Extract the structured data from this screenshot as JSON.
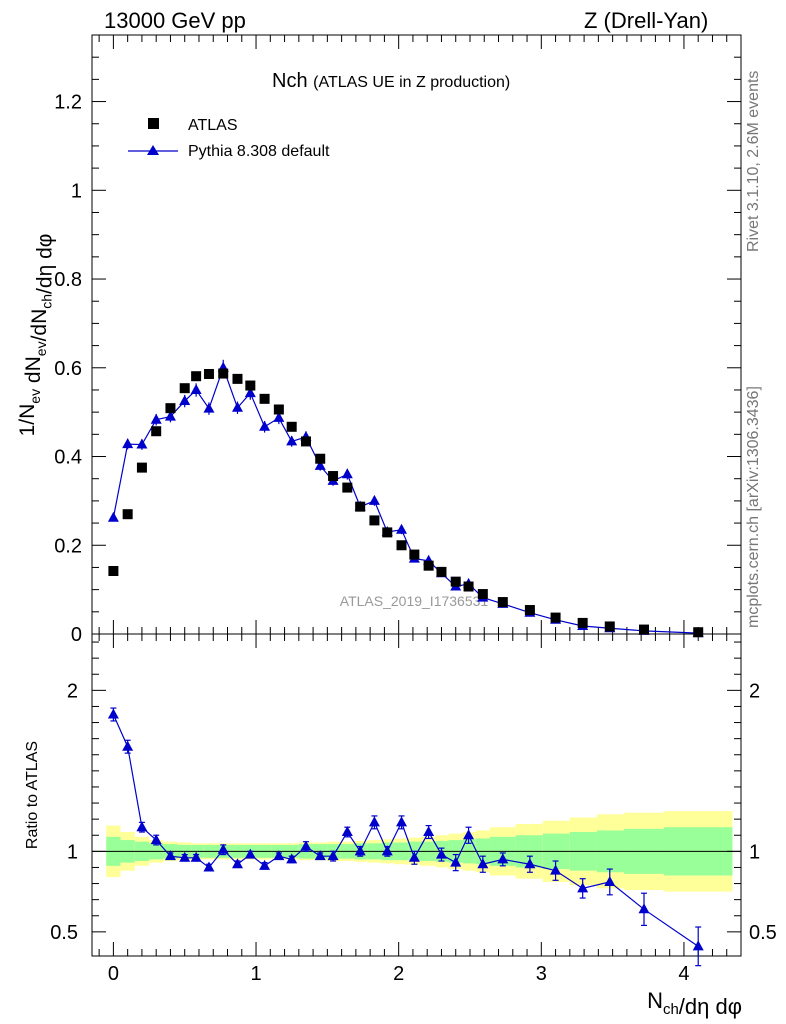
{
  "header": {
    "left": "13000 GeV pp",
    "right": "Z (Drell-Yan)"
  },
  "side_labels": {
    "rivet": "Rivet 3.1.10,  2.6M events",
    "source": "mcplots.cern.ch [arXiv:1306.3436]"
  },
  "chart_data": [
    {
      "type": "scatter",
      "title_main": "Nch",
      "title_sub": "(ATLAS UE in Z production)",
      "watermark": "ATLAS_2019_I1736531",
      "ylabel": "1/N_ev dN_ev/dN_ch/dη dφ",
      "ylim": [
        0,
        1.35
      ],
      "xlim": [
        -0.15,
        4.4
      ],
      "y_ticks": [
        "0",
        "0.2",
        "0.4",
        "0.6",
        "0.8",
        "1",
        "1.2"
      ],
      "y_tick_values": [
        0,
        0.2,
        0.4,
        0.6,
        0.8,
        1.0,
        1.2
      ],
      "legend_placement": "top-left",
      "series": [
        {
          "name": "ATLAS",
          "marker": "square",
          "color": "#000000",
          "x": [
            0.0,
            0.1,
            0.2,
            0.3,
            0.4,
            0.5,
            0.58,
            0.67,
            0.77,
            0.87,
            0.96,
            1.06,
            1.16,
            1.25,
            1.35,
            1.45,
            1.54,
            1.64,
            1.73,
            1.83,
            1.92,
            2.02,
            2.11,
            2.21,
            2.3,
            2.4,
            2.49,
            2.59,
            2.73,
            2.92,
            3.1,
            3.29,
            3.48,
            3.72,
            4.1
          ],
          "values": [
            0.142,
            0.27,
            0.375,
            0.457,
            0.509,
            0.554,
            0.581,
            0.586,
            0.587,
            0.575,
            0.56,
            0.53,
            0.506,
            0.467,
            0.434,
            0.395,
            0.356,
            0.33,
            0.287,
            0.256,
            0.229,
            0.2,
            0.179,
            0.154,
            0.14,
            0.118,
            0.107,
            0.09,
            0.072,
            0.054,
            0.037,
            0.025,
            0.017,
            0.01,
            0.004
          ]
        },
        {
          "name": "Pythia 8.308 default",
          "marker": "triangle",
          "color": "#0000cc",
          "x": [
            0.0,
            0.1,
            0.2,
            0.3,
            0.4,
            0.5,
            0.58,
            0.67,
            0.77,
            0.87,
            0.96,
            1.06,
            1.16,
            1.25,
            1.35,
            1.45,
            1.54,
            1.64,
            1.73,
            1.83,
            1.92,
            2.02,
            2.11,
            2.21,
            2.3,
            2.4,
            2.49,
            2.59,
            2.73,
            2.92,
            3.1,
            3.29,
            3.48,
            3.72,
            4.1
          ],
          "values": [
            0.262,
            0.428,
            0.427,
            0.483,
            0.49,
            0.525,
            0.55,
            0.508,
            0.6,
            0.51,
            0.543,
            0.467,
            0.487,
            0.434,
            0.444,
            0.379,
            0.345,
            0.36,
            0.287,
            0.3,
            0.23,
            0.235,
            0.17,
            0.165,
            0.137,
            0.107,
            0.113,
            0.082,
            0.068,
            0.048,
            0.032,
            0.018,
            0.013,
            0.007,
            0.002
          ],
          "errors": [
            0.008,
            0.012,
            0.012,
            0.013,
            0.013,
            0.014,
            0.015,
            0.014,
            0.018,
            0.014,
            0.015,
            0.013,
            0.014,
            0.012,
            0.013,
            0.011,
            0.011,
            0.012,
            0.01,
            0.011,
            0.009,
            0.01,
            0.008,
            0.008,
            0.007,
            0.006,
            0.006,
            0.005,
            0.004,
            0.003,
            0.002,
            0.002,
            0.002,
            0.001,
            0.001
          ]
        }
      ]
    },
    {
      "type": "scatter",
      "ylabel": "Ratio to ATLAS",
      "xlabel": "N_ch/dη dφ",
      "ylim": [
        0.35,
        2.35
      ],
      "xlim": [
        -0.15,
        4.4
      ],
      "x_ticks": [
        "0",
        "1",
        "2",
        "3",
        "4"
      ],
      "x_tick_values": [
        0,
        1,
        2,
        3,
        4
      ],
      "y_ticks": [
        "0.5",
        "1",
        "2"
      ],
      "y_tick_values": [
        0.5,
        1.0,
        2.0
      ],
      "reference_line": 1.0,
      "bands": {
        "edges": [
          -0.05,
          0.05,
          0.15,
          0.25,
          0.35,
          0.45,
          0.55,
          0.63,
          0.72,
          0.82,
          0.92,
          1.01,
          1.11,
          1.21,
          1.3,
          1.4,
          1.5,
          1.59,
          1.69,
          1.78,
          1.88,
          1.97,
          2.07,
          2.16,
          2.26,
          2.35,
          2.45,
          2.54,
          2.64,
          2.82,
          3.01,
          3.2,
          3.39,
          3.58,
          3.86,
          4.34
        ],
        "inner_half_width": [
          0.09,
          0.07,
          0.06,
          0.05,
          0.045,
          0.04,
          0.04,
          0.04,
          0.04,
          0.04,
          0.04,
          0.04,
          0.04,
          0.04,
          0.045,
          0.045,
          0.045,
          0.045,
          0.05,
          0.05,
          0.055,
          0.055,
          0.06,
          0.06,
          0.065,
          0.07,
          0.075,
          0.08,
          0.09,
          0.1,
          0.11,
          0.12,
          0.13,
          0.14,
          0.15
        ],
        "outer_half_width": [
          0.16,
          0.12,
          0.09,
          0.07,
          0.06,
          0.055,
          0.05,
          0.05,
          0.05,
          0.05,
          0.05,
          0.05,
          0.05,
          0.05,
          0.055,
          0.055,
          0.06,
          0.06,
          0.065,
          0.07,
          0.075,
          0.08,
          0.085,
          0.09,
          0.1,
          0.11,
          0.12,
          0.13,
          0.15,
          0.17,
          0.19,
          0.21,
          0.23,
          0.24,
          0.25
        ],
        "inner_color": "#99ff99",
        "outer_color": "#ffff99"
      },
      "series": [
        {
          "name": "Pythia 8.308 default",
          "marker": "triangle",
          "color": "#0000cc",
          "x": [
            0.0,
            0.1,
            0.2,
            0.3,
            0.4,
            0.5,
            0.58,
            0.67,
            0.77,
            0.87,
            0.96,
            1.06,
            1.16,
            1.25,
            1.35,
            1.45,
            1.54,
            1.64,
            1.73,
            1.83,
            1.92,
            2.02,
            2.11,
            2.21,
            2.3,
            2.4,
            2.49,
            2.59,
            2.73,
            2.92,
            3.1,
            3.29,
            3.48,
            3.72,
            4.1
          ],
          "values": [
            1.85,
            1.65,
            1.15,
            1.07,
            0.97,
            0.96,
            0.96,
            0.9,
            1.01,
            0.92,
            0.98,
            0.91,
            0.97,
            0.95,
            1.03,
            0.97,
            0.97,
            1.12,
            1.0,
            1.18,
            1.0,
            1.18,
            0.96,
            1.12,
            0.98,
            0.93,
            1.1,
            0.92,
            0.95,
            0.92,
            0.88,
            0.77,
            0.81,
            0.64,
            0.41
          ],
          "errors": [
            0.04,
            0.04,
            0.03,
            0.03,
            0.02,
            0.02,
            0.02,
            0.02,
            0.03,
            0.02,
            0.02,
            0.02,
            0.02,
            0.02,
            0.03,
            0.02,
            0.03,
            0.03,
            0.03,
            0.04,
            0.03,
            0.04,
            0.04,
            0.04,
            0.04,
            0.05,
            0.05,
            0.05,
            0.04,
            0.05,
            0.06,
            0.06,
            0.08,
            0.1,
            0.12
          ]
        }
      ]
    }
  ]
}
